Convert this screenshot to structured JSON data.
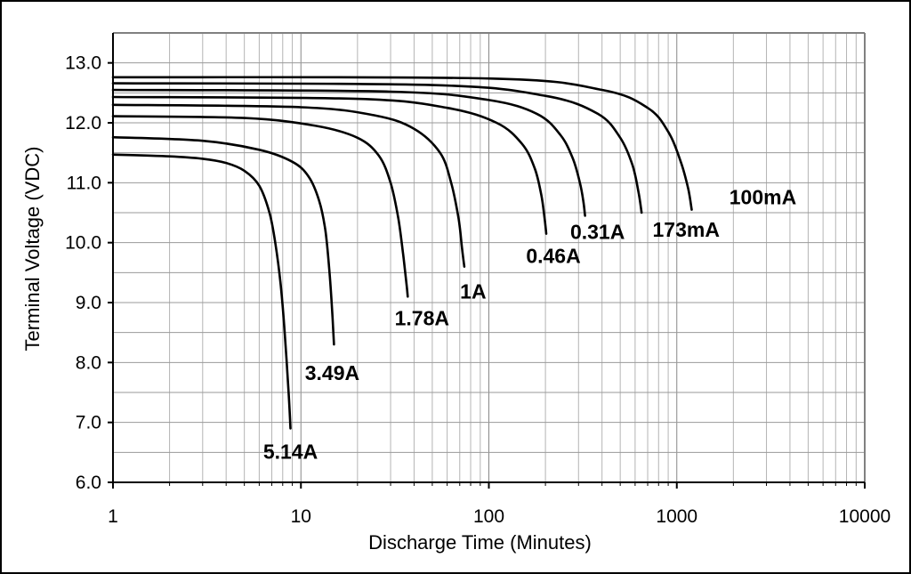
{
  "chart_data": {
    "type": "line",
    "title": "",
    "xlabel": "Discharge Time (Minutes)",
    "ylabel": "Terminal Voltage (VDC)",
    "x_scale": "log",
    "xlim": [
      1,
      10000
    ],
    "ylim": [
      6.0,
      13.5
    ],
    "x_ticks": [
      "1",
      "10",
      "100",
      "1000",
      "10000"
    ],
    "y_ticks": [
      "6.0",
      "7.0",
      "8.0",
      "9.0",
      "10.0",
      "11.0",
      "12.0",
      "13.0"
    ],
    "grid": true,
    "legend": "none (curves labeled directly)",
    "series": [
      {
        "label": "5.14A",
        "x": [
          1,
          2,
          3,
          4,
          5,
          6,
          6.8,
          7.3,
          7.8,
          8.2,
          8.6,
          8.8
        ],
        "y": [
          11.47,
          11.44,
          11.4,
          11.33,
          11.2,
          10.95,
          10.5,
          10.0,
          9.3,
          8.5,
          7.5,
          6.9
        ]
      },
      {
        "label": "3.49A",
        "x": [
          1,
          3,
          6,
          9,
          11,
          12.5,
          13.5,
          14.2,
          14.7,
          15
        ],
        "y": [
          11.76,
          11.7,
          11.55,
          11.35,
          11.1,
          10.7,
          10.2,
          9.5,
          8.8,
          8.3
        ]
      },
      {
        "label": "1.78A",
        "x": [
          1,
          5,
          12,
          20,
          26,
          30,
          33,
          35,
          36.5,
          37
        ],
        "y": [
          12.11,
          12.08,
          11.95,
          11.75,
          11.45,
          11.0,
          10.4,
          9.8,
          9.3,
          9.1
        ]
      },
      {
        "label": "1A",
        "x": [
          1,
          10,
          25,
          40,
          55,
          63,
          69,
          72,
          74
        ],
        "y": [
          12.3,
          12.26,
          12.12,
          11.9,
          11.5,
          11.0,
          10.4,
          9.9,
          9.6
        ]
      },
      {
        "label": "0.46A",
        "x": [
          1,
          20,
          60,
          110,
          150,
          175,
          190,
          198,
          202
        ],
        "y": [
          12.43,
          12.4,
          12.25,
          12.0,
          11.65,
          11.25,
          10.8,
          10.4,
          10.15
        ]
      },
      {
        "label": "0.31A",
        "x": [
          1,
          30,
          100,
          180,
          240,
          280,
          305,
          318,
          325
        ],
        "y": [
          12.55,
          12.52,
          12.38,
          12.15,
          11.8,
          11.4,
          11.0,
          10.7,
          10.45
        ]
      },
      {
        "label": "173mA",
        "x": [
          1,
          50,
          200,
          380,
          500,
          580,
          625,
          650
        ],
        "y": [
          12.66,
          12.63,
          12.45,
          12.15,
          11.75,
          11.3,
          10.85,
          10.5
        ]
      },
      {
        "label": "100mA",
        "x": [
          1,
          100,
          400,
          700,
          900,
          1050,
          1150,
          1200
        ],
        "y": [
          12.76,
          12.74,
          12.55,
          12.25,
          11.85,
          11.35,
          10.9,
          10.55
        ]
      }
    ],
    "annotations": [
      "5.14A",
      "3.49A",
      "1.78A",
      "1A",
      "0.46A",
      "0.31A",
      "173mA",
      "100mA"
    ]
  }
}
